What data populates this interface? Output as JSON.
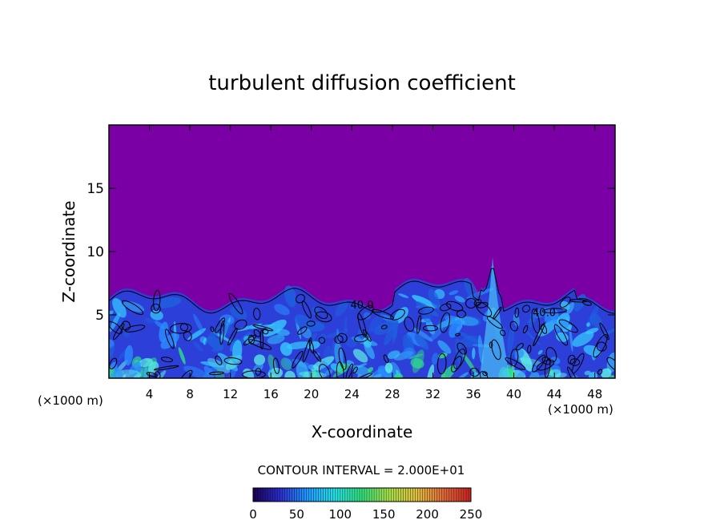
{
  "chart_data": {
    "type": "heatmap",
    "title": "turbulent diffusion coefficient",
    "xlabel": "X-coordinate",
    "ylabel": "Z-coordinate",
    "x_unit": "(×1000 m)",
    "z_unit": "(×1000 m)",
    "xlim": [
      0,
      50
    ],
    "ylim": [
      0,
      20
    ],
    "xticks": [
      "4",
      "8",
      "12",
      "16",
      "20",
      "24",
      "28",
      "32",
      "36",
      "40",
      "44",
      "48"
    ],
    "yticks": [
      "5",
      "10",
      "15"
    ],
    "xtick_values": [
      4,
      8,
      12,
      16,
      20,
      24,
      28,
      32,
      36,
      40,
      44,
      48
    ],
    "ytick_values": [
      5,
      10,
      15
    ],
    "contour_interval_text": "CONTOUR INTERVAL = 2.000E+01",
    "contour_interval": 20,
    "contour_labels": [
      {
        "text": "40.0",
        "x": 25,
        "z": 5.5
      },
      {
        "text": "40.0",
        "x": 43,
        "z": 4.9
      }
    ],
    "colorbar": {
      "min": 0,
      "max": 250,
      "ticks": [
        "0",
        "50",
        "100",
        "150",
        "200",
        "250"
      ],
      "tick_values": [
        0,
        50,
        100,
        150,
        200,
        250
      ],
      "colors": [
        "#1a0055",
        "#2b2fd0",
        "#1f9bff",
        "#27e0e6",
        "#33e07a",
        "#a8e04a",
        "#e0c040",
        "#e06a3a",
        "#cc2222"
      ]
    },
    "background_color": "#7a00a6",
    "field_colors": [
      "#1f5fe0",
      "#2a8cff",
      "#36c8ff",
      "#5df2e8",
      "#2ee08a"
    ]
  }
}
